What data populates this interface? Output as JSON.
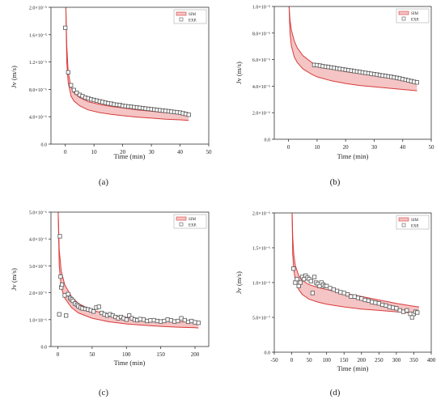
{
  "chart_data": [
    {
      "type": "scatter",
      "panel_label": "(a)",
      "xlabel": "Time (min)",
      "ylabel": "Jv (m/s)",
      "xlim": [
        -5,
        50
      ],
      "xticks": [
        0,
        10,
        20,
        30,
        40,
        50
      ],
      "ylim": [
        0,
        2e-05
      ],
      "yticks": [
        {
          "v": 0,
          "label": "0.0"
        },
        {
          "v": 4e-06,
          "label": "4.0×10⁻⁶"
        },
        {
          "v": 8e-06,
          "label": "8.0×10⁻⁶"
        },
        {
          "v": 1.2e-05,
          "label": "1.2×10⁻⁵"
        },
        {
          "v": 1.6e-05,
          "label": "1.6×10⁻⁵"
        },
        {
          "v": 2e-05,
          "label": "2.0×10⁻⁵"
        }
      ],
      "legend": {
        "position": "top-right",
        "sim_label": "SIM",
        "exp_label": "EXP."
      },
      "band": {
        "x": [
          0.2,
          0.5,
          1,
          2,
          3,
          5,
          8,
          12,
          16,
          20,
          25,
          30,
          35,
          40,
          43
        ],
        "upper": [
          2e-05,
          1.45e-05,
          1.05e-05,
          8.3e-06,
          7.5e-06,
          6.8e-06,
          6.2e-06,
          5.8e-06,
          5.5e-06,
          5.3e-06,
          5e-06,
          4.8e-06,
          4.6e-06,
          4.45e-06,
          4.35e-06
        ],
        "lower": [
          2e-05,
          1.2e-05,
          9e-06,
          7e-06,
          6.3e-06,
          5.6e-06,
          5e-06,
          4.6e-06,
          4.35e-06,
          4.15e-06,
          3.95e-06,
          3.8e-06,
          3.65e-06,
          3.55e-06,
          3.45e-06
        ]
      },
      "points": {
        "x": [
          0,
          1,
          2,
          3,
          4,
          5,
          6,
          7,
          8,
          9,
          10,
          11,
          12,
          13,
          14,
          15,
          16,
          17,
          18,
          19,
          20,
          21,
          22,
          23,
          24,
          25,
          26,
          27,
          28,
          29,
          30,
          31,
          32,
          33,
          34,
          35,
          36,
          37,
          38,
          39,
          40,
          41,
          42,
          43
        ],
        "y": [
          1.7e-05,
          1.05e-05,
          8.6e-06,
          7.9e-06,
          7.5e-06,
          7.2e-06,
          7e-06,
          6.8e-06,
          6.7e-06,
          6.55e-06,
          6.45e-06,
          6.35e-06,
          6.25e-06,
          6.15e-06,
          6.05e-06,
          5.95e-06,
          5.9e-06,
          5.8e-06,
          5.75e-06,
          5.7e-06,
          5.6e-06,
          5.55e-06,
          5.5e-06,
          5.45e-06,
          5.4e-06,
          5.35e-06,
          5.3e-06,
          5.25e-06,
          5.2e-06,
          5.15e-06,
          5.1e-06,
          5.05e-06,
          5e-06,
          4.95e-06,
          4.9e-06,
          4.85e-06,
          4.8e-06,
          4.75e-06,
          4.7e-06,
          4.65e-06,
          4.6e-06,
          4.5e-06,
          4.4e-06,
          4.3e-06
        ]
      }
    },
    {
      "type": "scatter",
      "panel_label": "(b)",
      "xlabel": "Time (min)",
      "ylabel": "Jv (m/s)",
      "xlim": [
        -5,
        50
      ],
      "xticks": [
        0,
        10,
        20,
        30,
        40,
        50
      ],
      "ylim": [
        0,
        1e-05
      ],
      "yticks": [
        {
          "v": 0,
          "label": "0.0"
        },
        {
          "v": 2e-06,
          "label": "2.0×10⁻⁶"
        },
        {
          "v": 4e-06,
          "label": "4.0×10⁻⁶"
        },
        {
          "v": 6e-06,
          "label": "6.0×10⁻⁶"
        },
        {
          "v": 8e-06,
          "label": "8.0×10⁻⁶"
        },
        {
          "v": 1e-05,
          "label": "1.0×10⁻⁵"
        }
      ],
      "legend": {
        "position": "top-right",
        "sim_label": "SIM",
        "exp_label": "EXP."
      },
      "band": {
        "x": [
          0.2,
          0.5,
          1,
          2,
          3,
          5,
          8,
          10,
          15,
          20,
          25,
          30,
          35,
          40,
          45
        ],
        "upper": [
          1e-05,
          9e-06,
          8.2e-06,
          7.4e-06,
          6.9e-06,
          6.3e-06,
          5.8e-06,
          5.6e-06,
          5.3e-06,
          5.1e-06,
          4.95e-06,
          4.8e-06,
          4.65e-06,
          4.5e-06,
          4.35e-06
        ],
        "lower": [
          1e-05,
          8e-06,
          7e-06,
          6.2e-06,
          5.8e-06,
          5.3e-06,
          4.9e-06,
          4.7e-06,
          4.4e-06,
          4.2e-06,
          4.05e-06,
          3.95e-06,
          3.85e-06,
          3.75e-06,
          3.65e-06
        ]
      },
      "points": {
        "x": [
          9,
          10,
          11,
          12,
          13,
          14,
          15,
          16,
          17,
          18,
          19,
          20,
          21,
          22,
          23,
          24,
          25,
          26,
          27,
          28,
          29,
          30,
          31,
          32,
          33,
          34,
          35,
          36,
          37,
          38,
          39,
          40,
          41,
          42,
          43,
          44,
          45
        ],
        "y": [
          5.6e-06,
          5.58e-06,
          5.55e-06,
          5.5e-06,
          5.47e-06,
          5.44e-06,
          5.4e-06,
          5.37e-06,
          5.33e-06,
          5.3e-06,
          5.27e-06,
          5.23e-06,
          5.2e-06,
          5.17e-06,
          5.13e-06,
          5.1e-06,
          5.07e-06,
          5.03e-06,
          5e-06,
          4.97e-06,
          4.93e-06,
          4.9e-06,
          4.87e-06,
          4.83e-06,
          4.8e-06,
          4.77e-06,
          4.73e-06,
          4.7e-06,
          4.66e-06,
          4.62e-06,
          4.58e-06,
          4.53e-06,
          4.48e-06,
          4.43e-06,
          4.38e-06,
          4.33e-06,
          4.28e-06
        ]
      }
    },
    {
      "type": "scatter",
      "panel_label": "(c)",
      "xlabel": "Time (min)",
      "ylabel": "Jv (m/s)",
      "xlim": [
        -10,
        220
      ],
      "xticks": [
        0,
        50,
        100,
        150,
        200
      ],
      "ylim": [
        0,
        5e-06
      ],
      "yticks": [
        {
          "v": 0,
          "label": "0.0"
        },
        {
          "v": 1e-06,
          "label": "1.0×10⁻⁶"
        },
        {
          "v": 2e-06,
          "label": "2.0×10⁻⁶"
        },
        {
          "v": 3e-06,
          "label": "3.0×10⁻⁶"
        },
        {
          "v": 4e-06,
          "label": "4.0×10⁻⁶"
        },
        {
          "v": 5e-06,
          "label": "5.0×10⁻⁶"
        }
      ],
      "legend": {
        "position": "top-right",
        "sim_label": "SIM",
        "exp_label": "EXP."
      },
      "band": {
        "x": [
          0.5,
          2,
          5,
          10,
          20,
          30,
          50,
          75,
          100,
          125,
          150,
          175,
          200,
          205
        ],
        "upper": [
          5e-06,
          3.6e-06,
          2.8e-06,
          2.3e-06,
          1.85e-06,
          1.6e-06,
          1.35e-06,
          1.18e-06,
          1.08e-06,
          1.02e-06,
          9.7e-07,
          9.3e-07,
          9e-07,
          9e-07
        ],
        "lower": [
          5e-06,
          3e-06,
          2.2e-06,
          1.8e-06,
          1.45e-06,
          1.25e-06,
          1.05e-06,
          9.2e-07,
          8.4e-07,
          7.9e-07,
          7.5e-07,
          7.2e-07,
          7e-07,
          6.9e-07
        ]
      },
      "points": {
        "x": [
          2,
          3,
          4,
          5,
          6,
          10,
          12,
          15,
          18,
          20,
          22,
          25,
          28,
          30,
          33,
          36,
          40,
          44,
          48,
          52,
          56,
          60,
          64,
          68,
          72,
          76,
          80,
          84,
          88,
          92,
          96,
          100,
          104,
          108,
          112,
          116,
          120,
          125,
          130,
          135,
          140,
          145,
          150,
          155,
          160,
          165,
          170,
          175,
          180,
          185,
          190,
          195,
          200,
          205
        ],
        "y": [
          1.2e-06,
          4.1e-06,
          2.6e-06,
          2.2e-06,
          2.3e-06,
          1.9e-06,
          1.15e-06,
          1.95e-06,
          1.8e-06,
          1.75e-06,
          1.7e-06,
          1.6e-06,
          1.55e-06,
          1.5e-06,
          1.45e-06,
          1.42e-06,
          1.4e-06,
          1.38e-06,
          1.35e-06,
          1.3e-06,
          1.45e-06,
          1.48e-06,
          1.25e-06,
          1.2e-06,
          1.15e-06,
          1.2e-06,
          1.15e-06,
          1.1e-06,
          1.05e-06,
          1.1e-06,
          1.05e-06,
          1e-06,
          1.15e-06,
          1.05e-06,
          1e-06,
          9.8e-07,
          1.02e-06,
          1e-06,
          9.5e-07,
          9.7e-07,
          9.8e-07,
          9.5e-07,
          9.3e-07,
          9.5e-07,
          1e-06,
          9.7e-07,
          9.3e-07,
          9.5e-07,
          1.05e-06,
          9.8e-07,
          9.2e-07,
          9.5e-07,
          9e-07,
          8.8e-07
        ]
      }
    },
    {
      "type": "scatter",
      "panel_label": "(d)",
      "xlabel": "Time (min)",
      "ylabel": "Jv (m/s)",
      "xlim": [
        -50,
        400
      ],
      "xticks": [
        -50,
        0,
        50,
        100,
        150,
        200,
        250,
        300,
        350,
        400
      ],
      "ylim": [
        0,
        2e-06
      ],
      "yticks": [
        {
          "v": 0,
          "label": "0.0"
        },
        {
          "v": 5e-07,
          "label": "5.0×10⁻⁷"
        },
        {
          "v": 1e-06,
          "label": "1.0×10⁻⁶"
        },
        {
          "v": 1.5e-06,
          "label": "1.5×10⁻⁶"
        },
        {
          "v": 2e-06,
          "label": "2.0×10⁻⁶"
        }
      ],
      "legend": {
        "position": "top-right",
        "sim_label": "SIM",
        "exp_label": "EXP."
      },
      "band": {
        "x": [
          1,
          3,
          6,
          10,
          20,
          30,
          50,
          75,
          100,
          150,
          200,
          250,
          300,
          350,
          365
        ],
        "upper": [
          2e-06,
          1.65e-06,
          1.4e-06,
          1.25e-06,
          1.1e-06,
          1.03e-06,
          9.7e-07,
          9.3e-07,
          9e-07,
          8.5e-07,
          8e-07,
          7.5e-07,
          7e-07,
          6.6e-07,
          6.5e-07
        ],
        "lower": [
          2e-06,
          1.4e-06,
          1.18e-06,
          1.05e-06,
          9e-07,
          8.3e-07,
          7.6e-07,
          7.2e-07,
          6.9e-07,
          6.5e-07,
          6.2e-07,
          6e-07,
          5.8e-07,
          5.6e-07,
          5.5e-07
        ]
      },
      "points": {
        "x": [
          5,
          10,
          15,
          20,
          25,
          30,
          35,
          40,
          45,
          50,
          55,
          60,
          65,
          70,
          75,
          80,
          85,
          90,
          95,
          100,
          110,
          120,
          130,
          140,
          150,
          160,
          170,
          180,
          190,
          200,
          210,
          220,
          230,
          240,
          250,
          260,
          270,
          280,
          290,
          300,
          310,
          320,
          330,
          340,
          345,
          350,
          355,
          360
        ],
        "y": [
          1.2e-06,
          1e-06,
          1.05e-06,
          9.5e-07,
          1e-06,
          1.08e-06,
          1.05e-06,
          1.1e-06,
          1.07e-06,
          1.05e-06,
          1.02e-06,
          8.5e-07,
          1.08e-06,
          1e-06,
          9.8e-07,
          9.5e-07,
          1e-06,
          9.7e-07,
          9.5e-07,
          9.5e-07,
          9.2e-07,
          9e-07,
          8.8e-07,
          8.6e-07,
          8.5e-07,
          8.3e-07,
          8e-07,
          8e-07,
          7.8e-07,
          7.7e-07,
          7.5e-07,
          7.4e-07,
          7.2e-07,
          7.1e-07,
          7e-07,
          6.8e-07,
          6.7e-07,
          6.5e-07,
          6.4e-07,
          6.3e-07,
          6e-07,
          5.8e-07,
          6e-07,
          5.5e-07,
          5e-07,
          5.5e-07,
          5.8e-07,
          5.7e-07
        ]
      }
    }
  ],
  "colors": {
    "band_fill": "#f5c4c4",
    "band_edge": "#d83b3b",
    "marker_edge": "#555555",
    "axis": "#333333"
  }
}
